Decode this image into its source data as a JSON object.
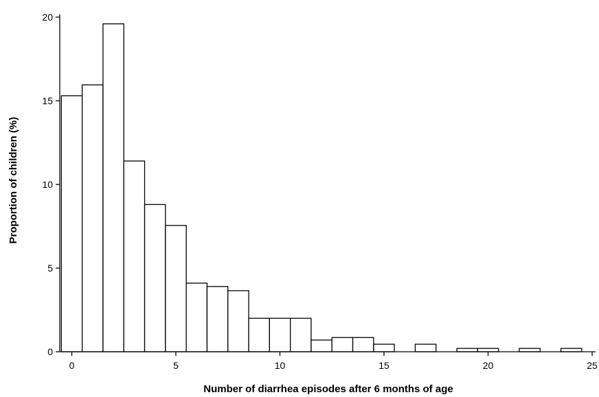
{
  "chart_data": {
    "type": "bar",
    "title": "",
    "xlabel": "Number of diarrhea episodes after 6 months of age",
    "ylabel": "Proportion of children (%)",
    "x": [
      0,
      1,
      2,
      3,
      4,
      5,
      6,
      7,
      8,
      9,
      10,
      11,
      12,
      13,
      14,
      15,
      16,
      17,
      18,
      19,
      20,
      21,
      22,
      23,
      24
    ],
    "values": [
      15.3,
      15.95,
      19.6,
      11.4,
      8.8,
      7.55,
      4.1,
      3.9,
      3.65,
      2.0,
      2.0,
      2.0,
      0.7,
      0.85,
      0.85,
      0.45,
      0,
      0.45,
      0,
      0.2,
      0.2,
      0,
      0.2,
      0,
      0.2
    ],
    "xlim": [
      -0.5,
      25
    ],
    "ylim": [
      0,
      20
    ],
    "xticks": [
      0,
      5,
      10,
      15,
      20,
      25
    ],
    "yticks": [
      0,
      5,
      10,
      15,
      20
    ],
    "xtick_labels": [
      "0",
      "5",
      "10",
      "15",
      "20",
      "25"
    ],
    "ytick_labels": [
      "0",
      "5",
      "10",
      "15",
      "20"
    ],
    "grid": false,
    "legend": "none",
    "bar_fill": "#ffffff",
    "bar_stroke": "#000000"
  }
}
